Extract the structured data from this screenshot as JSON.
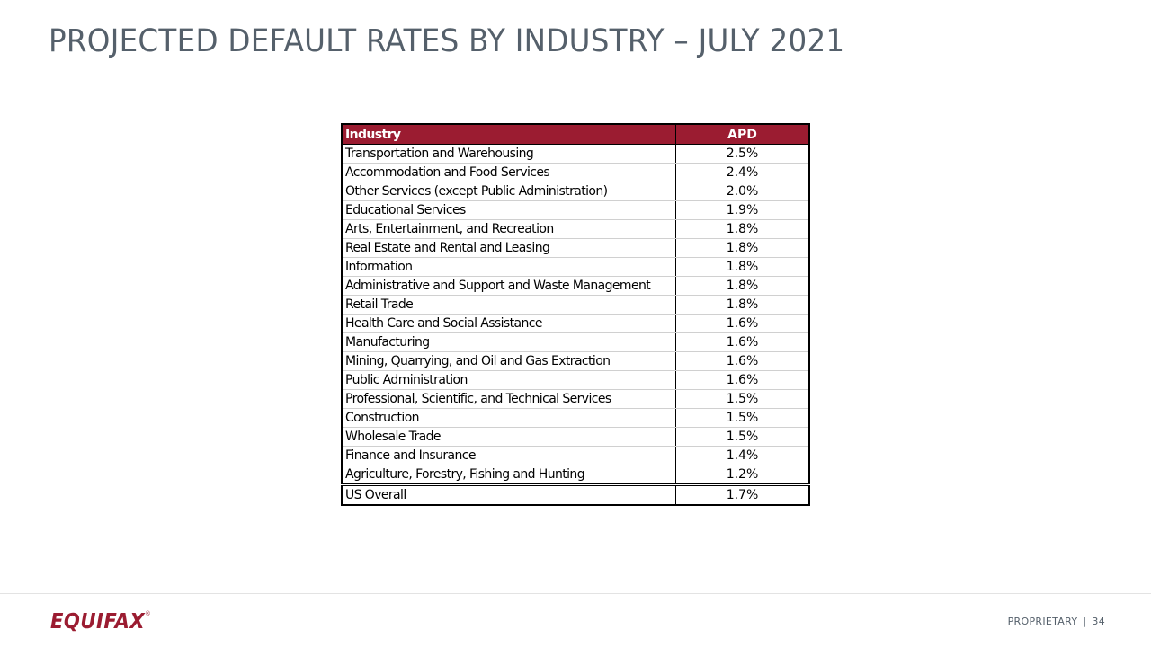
{
  "title": "PROJECTED DEFAULT RATES BY INDUSTRY – JULY 2021",
  "table": {
    "headers": {
      "industry": "Industry",
      "apd": "APD"
    },
    "rows": [
      {
        "industry": "Transportation and Warehousing",
        "apd": "2.5%"
      },
      {
        "industry": "Accommodation and Food Services",
        "apd": "2.4%"
      },
      {
        "industry": "Other Services (except Public Administration)",
        "apd": "2.0%"
      },
      {
        "industry": "Educational Services",
        "apd": "1.9%"
      },
      {
        "industry": "Arts, Entertainment, and Recreation",
        "apd": "1.8%"
      },
      {
        "industry": "Real Estate and Rental and Leasing",
        "apd": "1.8%"
      },
      {
        "industry": "Information",
        "apd": "1.8%"
      },
      {
        "industry": "Administrative and Support and Waste Management",
        "apd": "1.8%"
      },
      {
        "industry": "Retail Trade",
        "apd": "1.8%"
      },
      {
        "industry": "Health Care and Social Assistance",
        "apd": "1.6%"
      },
      {
        "industry": "Manufacturing",
        "apd": "1.6%"
      },
      {
        "industry": "Mining, Quarrying, and Oil and Gas Extraction",
        "apd": "1.6%"
      },
      {
        "industry": "Public Administration",
        "apd": "1.6%"
      },
      {
        "industry": "Professional, Scientific, and Technical Services",
        "apd": "1.5%"
      },
      {
        "industry": "Construction",
        "apd": "1.5%"
      },
      {
        "industry": "Wholesale Trade",
        "apd": "1.5%"
      },
      {
        "industry": "Finance and Insurance",
        "apd": "1.4%"
      },
      {
        "industry": "Agriculture, Forestry, Fishing and Hunting",
        "apd": "1.2%"
      }
    ],
    "total": {
      "industry": "US Overall",
      "apd": "1.7%"
    }
  },
  "footer": {
    "logo_text": "EQUIFAX",
    "logo_mark": "®",
    "label": "PROPRIETARY",
    "separator": "|",
    "page_number": "34"
  },
  "colors": {
    "accent": "#9b1c31",
    "title": "#55606b"
  }
}
